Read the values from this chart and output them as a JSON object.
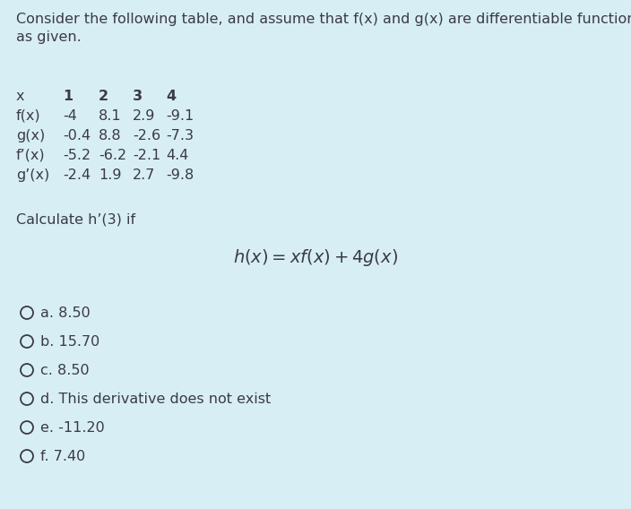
{
  "background_color": "#d8eef5",
  "intro_line1": "Consider the following table, and assume that f(x) and g(x) are differentiable functions with values",
  "intro_line2": "as given.",
  "table_header": [
    "x",
    "1",
    "2",
    "3",
    "4"
  ],
  "table_rows": [
    [
      "f(x)",
      "-4",
      "8.1",
      "2.9",
      "-9.1"
    ],
    [
      "g(x)",
      "-0.4",
      "8.8",
      "-2.6",
      "-7.3"
    ],
    [
      "f’(x)",
      "-5.2",
      "-6.2",
      "-2.1",
      "4.4"
    ],
    [
      "g’(x)",
      "-2.4",
      "1.9",
      "2.7",
      "-9.8"
    ]
  ],
  "calculate_text": "Calculate h’(3) if",
  "options": [
    "a. 8.50",
    "b. 15.70",
    "c. 8.50",
    "d. This derivative does not exist",
    "e. -11.20",
    "f. 7.40"
  ],
  "text_color": "#3a3a4a",
  "font_size": 11.5,
  "formula_font_size": 14
}
